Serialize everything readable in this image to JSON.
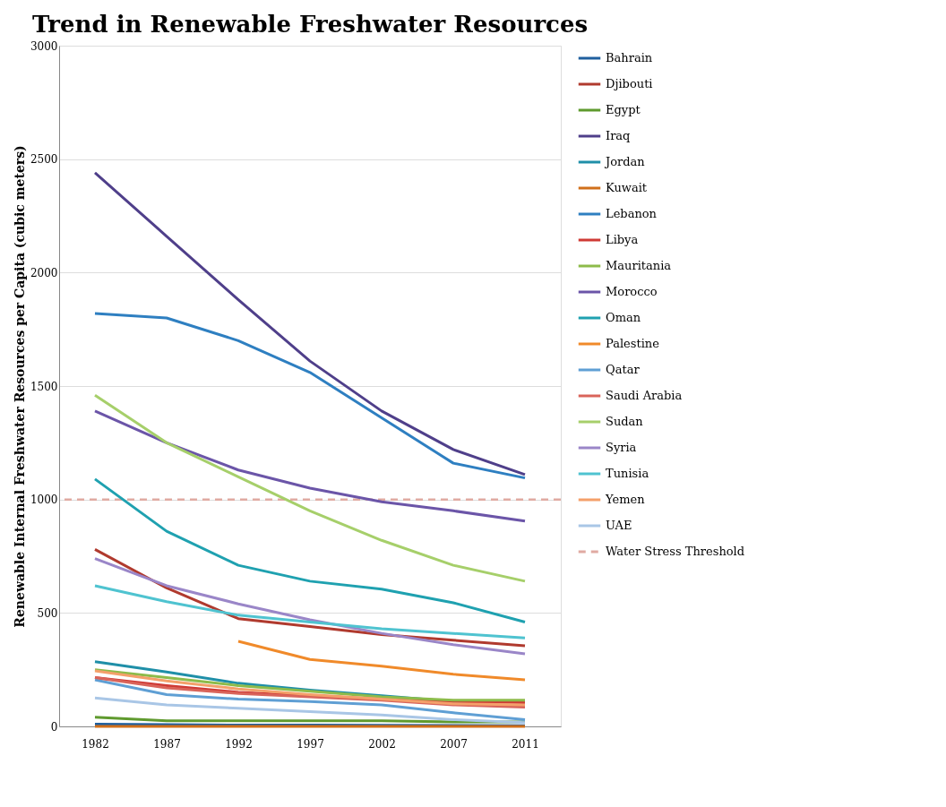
{
  "chart_data": {
    "type": "line",
    "title": "Trend in Renewable Freshwater Resources",
    "ylabel": "Renewable Internal Freshwater Resources per Capita (cubic meters)",
    "categories": [
      "1982",
      "1987",
      "1992",
      "1997",
      "2002",
      "2007",
      "2011"
    ],
    "ylim": [
      0,
      3000
    ],
    "yticks": [
      0,
      500,
      1000,
      1500,
      2000,
      2500,
      3000
    ],
    "grid": "y",
    "legend": "right",
    "marker": "none",
    "line_style": "solid",
    "series": [
      {
        "name": "Bahrain",
        "color": "#1f5f9e",
        "values": [
          10,
          8,
          6,
          6,
          5,
          4,
          3
        ]
      },
      {
        "name": "Djibouti",
        "color": "#b03a2e",
        "values": [
          780,
          610,
          475,
          440,
          405,
          380,
          355
        ]
      },
      {
        "name": "Egypt",
        "color": "#5f9a2e",
        "values": [
          40,
          25,
          25,
          25,
          25,
          20,
          20
        ]
      },
      {
        "name": "Iraq",
        "color": "#4f3f8a",
        "values": [
          2440,
          2160,
          1880,
          1610,
          1390,
          1220,
          1110
        ]
      },
      {
        "name": "Jordan",
        "color": "#1f8fa8",
        "values": [
          285,
          240,
          190,
          160,
          135,
          110,
          110
        ]
      },
      {
        "name": "Kuwait",
        "color": "#d06f1a",
        "values": [
          0,
          0,
          0,
          0,
          0,
          0,
          0
        ]
      },
      {
        "name": "Lebanon",
        "color": "#2e7fc1",
        "values": [
          1820,
          1800,
          1700,
          1560,
          1360,
          1160,
          1095
        ]
      },
      {
        "name": "Libya",
        "color": "#cf3a35",
        "values": [
          215,
          180,
          150,
          135,
          120,
          110,
          105
        ]
      },
      {
        "name": "Mauritania",
        "color": "#8dbb4a",
        "values": [
          250,
          215,
          180,
          155,
          130,
          115,
          115
        ]
      },
      {
        "name": "Morocco",
        "color": "#6b55a8",
        "values": [
          1390,
          1250,
          1130,
          1050,
          990,
          950,
          905
        ]
      },
      {
        "name": "Oman",
        "color": "#1fa1b0",
        "values": [
          1090,
          860,
          710,
          640,
          605,
          545,
          460
        ]
      },
      {
        "name": "Palestine",
        "color": "#f08a2a",
        "values": [
          null,
          null,
          375,
          295,
          265,
          230,
          205
        ]
      },
      {
        "name": "Qatar",
        "color": "#5f9fd4",
        "values": [
          205,
          140,
          120,
          110,
          95,
          60,
          30
        ]
      },
      {
        "name": "Saudi Arabia",
        "color": "#d9645a",
        "values": [
          215,
          170,
          145,
          130,
          115,
          95,
          85
        ]
      },
      {
        "name": "Sudan",
        "color": "#a6cf6a",
        "values": [
          1460,
          1250,
          1100,
          950,
          820,
          710,
          640
        ]
      },
      {
        "name": "Syria",
        "color": "#9a86c8",
        "values": [
          740,
          620,
          540,
          470,
          410,
          360,
          320
        ]
      },
      {
        "name": "Tunisia",
        "color": "#4fc3d0",
        "values": [
          620,
          550,
          490,
          460,
          430,
          410,
          390
        ]
      },
      {
        "name": "Yemen",
        "color": "#f4a06a",
        "values": [
          245,
          200,
          165,
          140,
          120,
          100,
          95
        ]
      },
      {
        "name": "UAE",
        "color": "#a9c6e6",
        "values": [
          125,
          95,
          80,
          65,
          50,
          30,
          17
        ]
      }
    ],
    "ref_lines": [
      {
        "axis": "y",
        "value": 1000,
        "label": "Water Stress Threshold",
        "color": "#e0aaa2",
        "line_style": "dashed"
      }
    ]
  }
}
